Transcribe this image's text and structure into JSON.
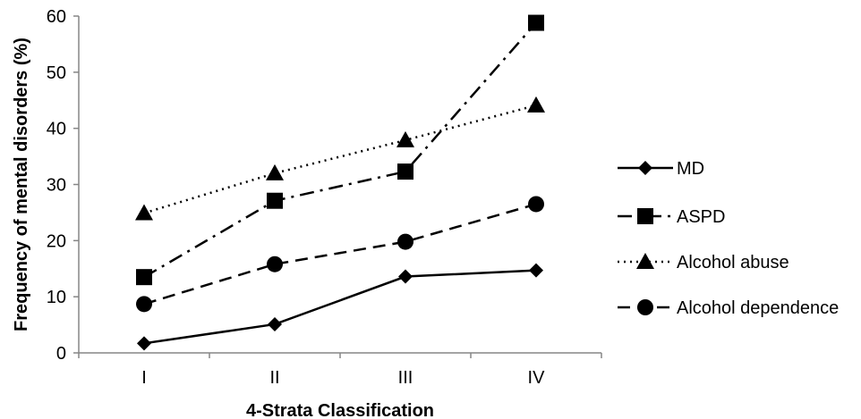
{
  "chart_data": {
    "type": "line",
    "xlabel": "4-Strata Classification",
    "ylabel": "Frequency of mental disorders (%)",
    "categories": [
      "I",
      "II",
      "III",
      "IV"
    ],
    "ylim": [
      0,
      60
    ],
    "yticks": [
      0,
      10,
      20,
      30,
      40,
      50,
      60
    ],
    "grid": false,
    "legend_position": "right",
    "series": [
      {
        "name": "MD",
        "values": [
          1.7,
          5.1,
          13.6,
          14.7
        ],
        "marker": "diamond",
        "dash": "solid"
      },
      {
        "name": "ASPD",
        "values": [
          13.5,
          27.1,
          32.3,
          58.8
        ],
        "marker": "square",
        "dash": "dashdot"
      },
      {
        "name": "Alcohol abuse",
        "values": [
          24.9,
          32.0,
          37.9,
          44.1
        ],
        "marker": "triangle",
        "dash": "dotted"
      },
      {
        "name": "Alcohol dependence",
        "values": [
          8.7,
          15.8,
          19.8,
          26.5
        ],
        "marker": "circle",
        "dash": "dashed"
      }
    ],
    "colors": {
      "line": "#000000",
      "axis": "#868686"
    }
  }
}
